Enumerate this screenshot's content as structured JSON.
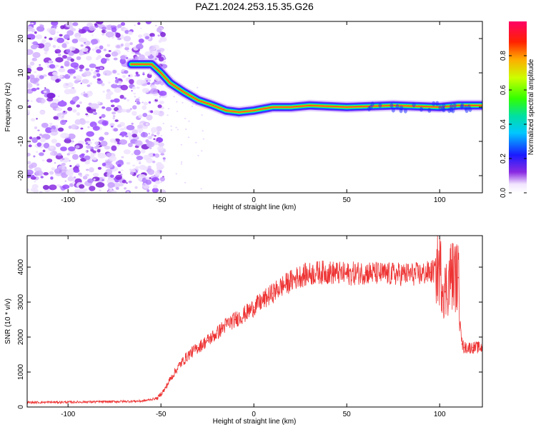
{
  "title": "PAZ1.2024.253.15.35.G26",
  "chart_data": [
    {
      "type": "heatmap",
      "xlabel": "Height of straight line (km)",
      "ylabel": "Frequency (Hz)",
      "xlim": [
        -122,
        123
      ],
      "ylim": [
        -25,
        25
      ],
      "xticks": [
        -100,
        -50,
        0,
        50,
        100
      ],
      "yticks": [
        -20,
        -10,
        0,
        10,
        20
      ],
      "ridge": [
        {
          "x": -66,
          "y": 12.5
        },
        {
          "x": -55,
          "y": 12.5
        },
        {
          "x": -50,
          "y": 10
        },
        {
          "x": -45,
          "y": 7
        },
        {
          "x": -38,
          "y": 4.5
        },
        {
          "x": -30,
          "y": 2
        },
        {
          "x": -22,
          "y": 0.5
        },
        {
          "x": -15,
          "y": -1
        },
        {
          "x": -8,
          "y": -1.5
        },
        {
          "x": 0,
          "y": -1
        },
        {
          "x": 10,
          "y": 0
        },
        {
          "x": 20,
          "y": 0
        },
        {
          "x": 30,
          "y": 0.5
        },
        {
          "x": 50,
          "y": 0
        },
        {
          "x": 75,
          "y": 0.5
        },
        {
          "x": 100,
          "y": 0
        },
        {
          "x": 110,
          "y": 0.5
        },
        {
          "x": 123,
          "y": 0.5
        }
      ],
      "noise_region": [
        -122,
        -52
      ],
      "colorbar": {
        "label": "Normalized spectral amplitude",
        "ticks": [
          0.0,
          0.2,
          0.4,
          0.6,
          0.8
        ],
        "range": [
          0,
          1
        ]
      }
    },
    {
      "type": "line",
      "xlabel": "Height of straight line (km)",
      "ylabel": "SNR (10 * v/v)",
      "xlim": [
        -122,
        123
      ],
      "ylim": [
        0,
        4900
      ],
      "xticks": [
        -100,
        -50,
        0,
        50,
        100
      ],
      "yticks": [
        0,
        1000,
        2000,
        3000,
        4000
      ],
      "series": [
        {
          "color": "#ee3333",
          "x": [
            -122,
            -100,
            -80,
            -60,
            -52,
            -48,
            -45,
            -40,
            -35,
            -30,
            -25,
            -20,
            -15,
            -10,
            -5,
            0,
            5,
            10,
            15,
            20,
            25,
            30,
            35,
            40,
            50,
            60,
            70,
            80,
            90,
            95,
            100,
            103,
            106,
            110,
            112,
            113,
            118,
            123
          ],
          "y": [
            130,
            140,
            150,
            170,
            250,
            500,
            800,
            1200,
            1500,
            1700,
            1900,
            2100,
            2350,
            2500,
            2650,
            2850,
            3050,
            3250,
            3450,
            3600,
            3750,
            3800,
            3850,
            3850,
            3800,
            3850,
            3800,
            3800,
            3800,
            3850,
            3950,
            3300,
            3800,
            3700,
            1800,
            1700,
            1700,
            1700
          ]
        }
      ]
    }
  ]
}
